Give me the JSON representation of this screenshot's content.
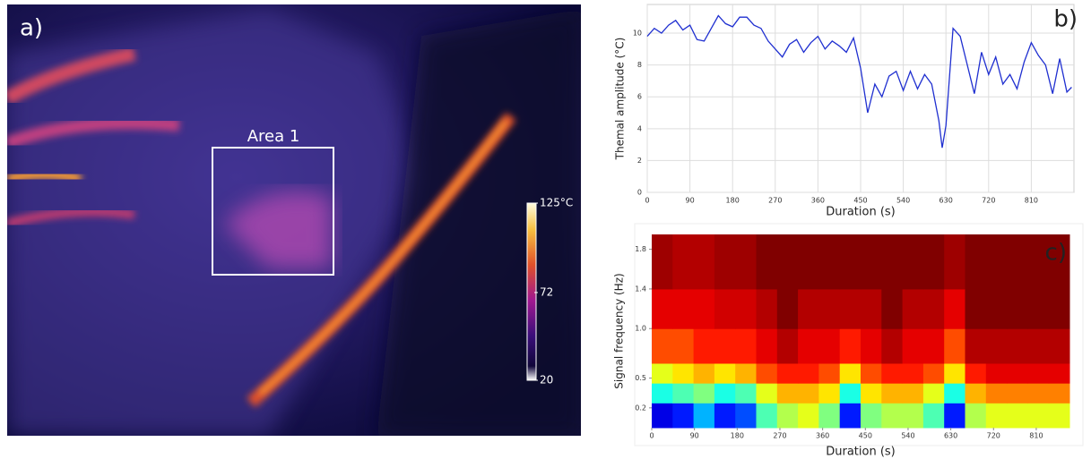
{
  "chart_data": [
    {
      "type": "image",
      "panel_label": "a)",
      "annotation": "Area 1",
      "colorbar": {
        "lim": [
          20,
          125
        ],
        "ticks": [
          {
            "value": 125,
            "label": "125°C"
          },
          72,
          20
        ]
      }
    },
    {
      "type": "line",
      "panel_label": "b)",
      "xlabel": "Duration (s)",
      "ylabel": "Themal amplitude (°C)",
      "color": "#1f2fd0",
      "grid": true,
      "x": [
        0,
        15,
        30,
        45,
        60,
        75,
        90,
        105,
        120,
        135,
        150,
        165,
        180,
        195,
        210,
        225,
        240,
        255,
        270,
        285,
        300,
        315,
        330,
        345,
        360,
        375,
        390,
        405,
        420,
        435,
        450,
        465,
        480,
        495,
        510,
        525,
        540,
        555,
        570,
        585,
        600,
        615,
        622,
        630,
        645,
        660,
        675,
        690,
        705,
        720,
        735,
        750,
        765,
        780,
        795,
        810,
        825,
        840,
        855,
        870,
        885,
        895
      ],
      "values": [
        9.8,
        10.3,
        10.0,
        10.5,
        10.8,
        10.2,
        10.5,
        9.6,
        9.5,
        10.3,
        11.1,
        10.6,
        10.4,
        11.0,
        11.0,
        10.5,
        10.3,
        9.5,
        9.0,
        8.5,
        9.3,
        9.6,
        8.8,
        9.4,
        9.8,
        9.0,
        9.5,
        9.2,
        8.8,
        9.7,
        7.8,
        5.0,
        6.8,
        6.0,
        7.3,
        7.6,
        6.4,
        7.6,
        6.5,
        7.4,
        6.8,
        4.5,
        2.8,
        4.2,
        10.3,
        9.8,
        8.0,
        6.2,
        8.8,
        7.4,
        8.5,
        6.8,
        7.4,
        6.5,
        8.2,
        9.4,
        8.6,
        8.0,
        6.2,
        8.4,
        6.3,
        6.6
      ],
      "xlim": [
        0,
        900
      ],
      "xticks": [
        0,
        90,
        180,
        270,
        360,
        450,
        540,
        630,
        720,
        810
      ],
      "ylim": [
        0,
        11.8
      ],
      "yticks": [
        0,
        2,
        4,
        6,
        8,
        10
      ]
    },
    {
      "type": "heatmap",
      "panel_label": "c)",
      "xlabel": "Duration (s)",
      "ylabel": "Signal frequency (Hz)",
      "grid": false,
      "x": [
        0,
        44,
        88,
        132,
        176,
        220,
        264,
        308,
        352,
        396,
        440,
        484,
        528,
        572,
        616,
        660,
        704,
        748,
        792,
        836,
        880
      ],
      "y": [
        0.05,
        0.25,
        0.45,
        0.65,
        1.0,
        1.4,
        1.95
      ],
      "zlim": [
        0,
        1
      ],
      "values": [
        [
          0.1,
          0.15,
          0.3,
          0.15,
          0.2,
          0.45,
          0.55,
          0.6,
          0.5,
          0.15,
          0.5,
          0.55,
          0.55,
          0.45,
          0.15,
          0.55,
          0.6,
          0.6,
          0.6,
          0.6
        ],
        [
          0.4,
          0.45,
          0.5,
          0.4,
          0.45,
          0.6,
          0.7,
          0.7,
          0.65,
          0.4,
          0.65,
          0.7,
          0.7,
          0.6,
          0.4,
          0.7,
          0.75,
          0.75,
          0.75,
          0.75
        ],
        [
          0.6,
          0.65,
          0.7,
          0.65,
          0.7,
          0.8,
          0.85,
          0.85,
          0.8,
          0.65,
          0.8,
          0.85,
          0.85,
          0.8,
          0.65,
          0.85,
          0.9,
          0.9,
          0.9,
          0.9
        ],
        [
          0.8,
          0.8,
          0.85,
          0.85,
          0.85,
          0.9,
          0.95,
          0.9,
          0.9,
          0.85,
          0.9,
          0.95,
          0.9,
          0.9,
          0.8,
          0.95,
          0.95,
          0.95,
          0.95,
          0.95
        ],
        [
          0.9,
          0.9,
          0.9,
          0.92,
          0.92,
          0.95,
          1,
          0.95,
          0.95,
          0.95,
          0.95,
          1,
          0.95,
          0.95,
          0.9,
          1,
          1,
          1,
          1,
          1
        ],
        [
          0.97,
          0.95,
          0.95,
          0.97,
          0.97,
          1,
          1,
          1,
          1,
          1,
          1,
          1,
          1,
          1,
          0.97,
          1,
          1,
          1,
          1,
          1
        ]
      ],
      "xlim": [
        0,
        880
      ],
      "xticks": [
        0,
        90,
        180,
        270,
        360,
        450,
        540,
        630,
        720,
        810
      ],
      "ylim": [
        0,
        1.95
      ],
      "yticks": [
        0.2,
        0.5,
        {
          "value": 1,
          "label": "1.0"
        },
        1.4,
        1.8
      ]
    }
  ]
}
